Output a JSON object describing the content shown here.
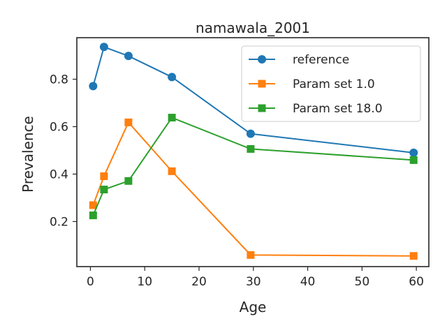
{
  "chart_data": {
    "type": "line",
    "title": "namawala_2001",
    "xlabel": "Age",
    "ylabel": "Prevalence",
    "xlim": [
      -2.5,
      62.3
    ],
    "ylim": [
      0.01,
      0.975
    ],
    "xticks": [
      0,
      10,
      20,
      30,
      40,
      50,
      60
    ],
    "yticks": [
      0.2,
      0.4,
      0.6,
      0.8
    ],
    "grid": false,
    "legend_position": "top-right",
    "series": [
      {
        "name": "reference",
        "color": "#1f77b4",
        "marker": "circle",
        "x": [
          0.5,
          2.5,
          7.0,
          15.0,
          29.5,
          59.5
        ],
        "y": [
          0.771,
          0.936,
          0.898,
          0.809,
          0.57,
          0.49
        ]
      },
      {
        "name": "Param set 1.0",
        "color": "#ff7f0e",
        "marker": "square",
        "x": [
          0.5,
          2.5,
          7.0,
          15.0,
          29.5,
          59.5
        ],
        "y": [
          0.269,
          0.391,
          0.618,
          0.412,
          0.059,
          0.055
        ]
      },
      {
        "name": "Param set 18.0",
        "color": "#2ca02c",
        "marker": "square",
        "x": [
          0.5,
          2.5,
          7.0,
          15.0,
          29.5,
          59.5
        ],
        "y": [
          0.226,
          0.335,
          0.371,
          0.638,
          0.506,
          0.459
        ]
      }
    ]
  }
}
